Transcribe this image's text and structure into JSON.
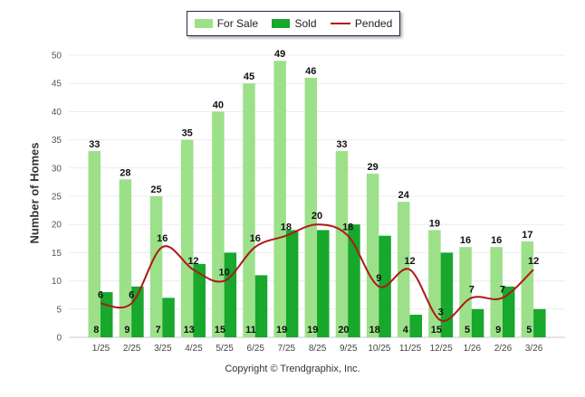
{
  "chart_data": {
    "type": "bar",
    "categories": [
      "1/25",
      "2/25",
      "3/25",
      "4/25",
      "5/25",
      "6/25",
      "7/25",
      "8/25",
      "9/25",
      "10/25",
      "11/25",
      "12/25",
      "1/26",
      "2/26",
      "3/26"
    ],
    "series": [
      {
        "name": "For Sale",
        "kind": "bar",
        "color": "#9de08a",
        "values": [
          33,
          28,
          25,
          35,
          40,
          45,
          49,
          46,
          33,
          29,
          24,
          19,
          16,
          16,
          17
        ]
      },
      {
        "name": "Sold",
        "kind": "bar",
        "color": "#17a82c",
        "values": [
          8,
          9,
          7,
          13,
          15,
          11,
          19,
          19,
          20,
          18,
          4,
          15,
          5,
          9,
          5
        ]
      },
      {
        "name": "Pended",
        "kind": "line",
        "color": "#b01818",
        "values": [
          6,
          6,
          16,
          12,
          10,
          16,
          18,
          20,
          18,
          9,
          12,
          3,
          7,
          7,
          12
        ]
      }
    ],
    "ylabel": "Number of Homes",
    "ylim": [
      0,
      50
    ],
    "yticks": [
      0,
      5,
      10,
      15,
      20,
      25,
      30,
      35,
      40,
      45,
      50
    ],
    "grid": true,
    "legend_position": "top-center"
  },
  "footer": {
    "copyright": "Copyright © Trendgraphix, Inc."
  }
}
